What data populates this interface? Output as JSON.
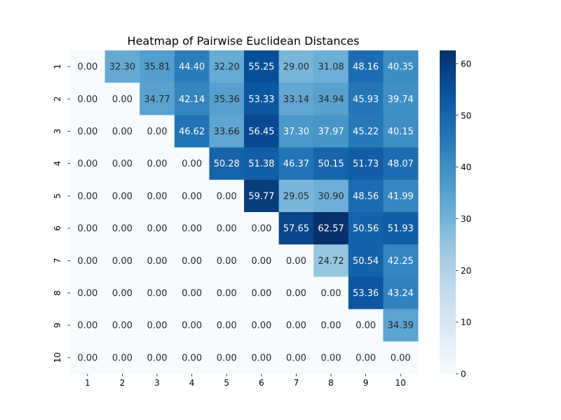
{
  "chart_data": {
    "type": "heatmap",
    "title": "Heatmap of Pairwise Euclidean Distances",
    "xlabel": "",
    "ylabel": "",
    "x_categories": [
      "1",
      "2",
      "3",
      "4",
      "5",
      "6",
      "7",
      "8",
      "9",
      "10"
    ],
    "y_categories": [
      "1",
      "2",
      "3",
      "4",
      "5",
      "6",
      "7",
      "8",
      "9",
      "10"
    ],
    "values": [
      [
        0.0,
        32.3,
        35.81,
        44.4,
        32.2,
        55.25,
        29.0,
        31.08,
        48.16,
        40.35
      ],
      [
        0.0,
        0.0,
        34.77,
        42.14,
        35.36,
        53.33,
        33.14,
        34.94,
        45.93,
        39.74
      ],
      [
        0.0,
        0.0,
        0.0,
        46.62,
        33.66,
        56.45,
        37.3,
        37.97,
        45.22,
        40.15
      ],
      [
        0.0,
        0.0,
        0.0,
        0.0,
        50.28,
        51.38,
        46.37,
        50.15,
        51.73,
        48.07
      ],
      [
        0.0,
        0.0,
        0.0,
        0.0,
        0.0,
        59.77,
        29.05,
        30.9,
        48.56,
        41.99
      ],
      [
        0.0,
        0.0,
        0.0,
        0.0,
        0.0,
        0.0,
        57.65,
        62.57,
        50.56,
        51.93
      ],
      [
        0.0,
        0.0,
        0.0,
        0.0,
        0.0,
        0.0,
        0.0,
        24.72,
        50.54,
        42.25
      ],
      [
        0.0,
        0.0,
        0.0,
        0.0,
        0.0,
        0.0,
        0.0,
        0.0,
        53.36,
        43.24
      ],
      [
        0.0,
        0.0,
        0.0,
        0.0,
        0.0,
        0.0,
        0.0,
        0.0,
        0.0,
        34.39
      ],
      [
        0.0,
        0.0,
        0.0,
        0.0,
        0.0,
        0.0,
        0.0,
        0.0,
        0.0,
        0.0
      ]
    ],
    "value_format_decimals": 2,
    "colormap": "Blues",
    "colormap_stops": [
      "#f7fbff",
      "#deebf7",
      "#c6dbef",
      "#9ecae1",
      "#6baed6",
      "#4292c6",
      "#2171b5",
      "#08519c",
      "#08306b"
    ],
    "vmin": 0,
    "vmax": 62.57,
    "colorbar_ticks": [
      0,
      10,
      20,
      30,
      40,
      50,
      60
    ]
  }
}
